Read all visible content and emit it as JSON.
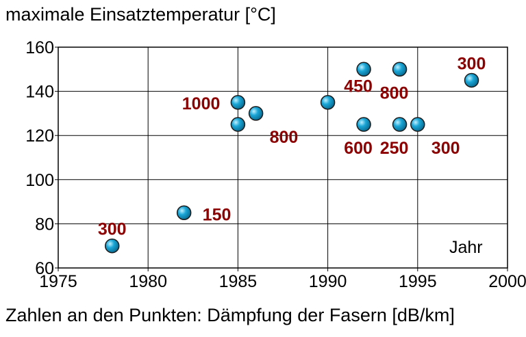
{
  "chart_data": {
    "type": "scatter",
    "title": "",
    "ylabel": "maximale Einsatztemperatur [°C]",
    "xlabel": "Jahr",
    "caption": "Zahlen an den Punkten: Dämpfung der Fasern [dB/km]",
    "xlim": [
      1975,
      2000
    ],
    "ylim": [
      60,
      160
    ],
    "xticks": [
      "1975",
      "1980",
      "1985",
      "1990",
      "1995",
      "2000"
    ],
    "yticks": [
      "60",
      "80",
      "100",
      "120",
      "140",
      "160"
    ],
    "grid": true,
    "marker_color": "#1aa6d6",
    "label_color": "#8b0000",
    "points": [
      {
        "x": 1978,
        "y": 70,
        "label": "300",
        "pos": "above"
      },
      {
        "x": 1982,
        "y": 85,
        "label": "150",
        "pos": "right"
      },
      {
        "x": 1985,
        "y": 135,
        "label": "1000",
        "pos": "left"
      },
      {
        "x": 1985,
        "y": 125,
        "label": "",
        "pos": "none"
      },
      {
        "x": 1986,
        "y": 130,
        "label": "800",
        "pos": "below-right"
      },
      {
        "x": 1990,
        "y": 135,
        "label": "",
        "pos": "none"
      },
      {
        "x": 1992,
        "y": 150,
        "label": "450",
        "pos": "below-left"
      },
      {
        "x": 1992,
        "y": 125,
        "label": "600",
        "pos": "below"
      },
      {
        "x": 1994,
        "y": 150,
        "label": "800",
        "pos": "below"
      },
      {
        "x": 1994,
        "y": 125,
        "label": "250",
        "pos": "below"
      },
      {
        "x": 1995,
        "y": 125,
        "label": "300",
        "pos": "below-right"
      },
      {
        "x": 1998,
        "y": 145,
        "label": "300",
        "pos": "above"
      }
    ]
  }
}
